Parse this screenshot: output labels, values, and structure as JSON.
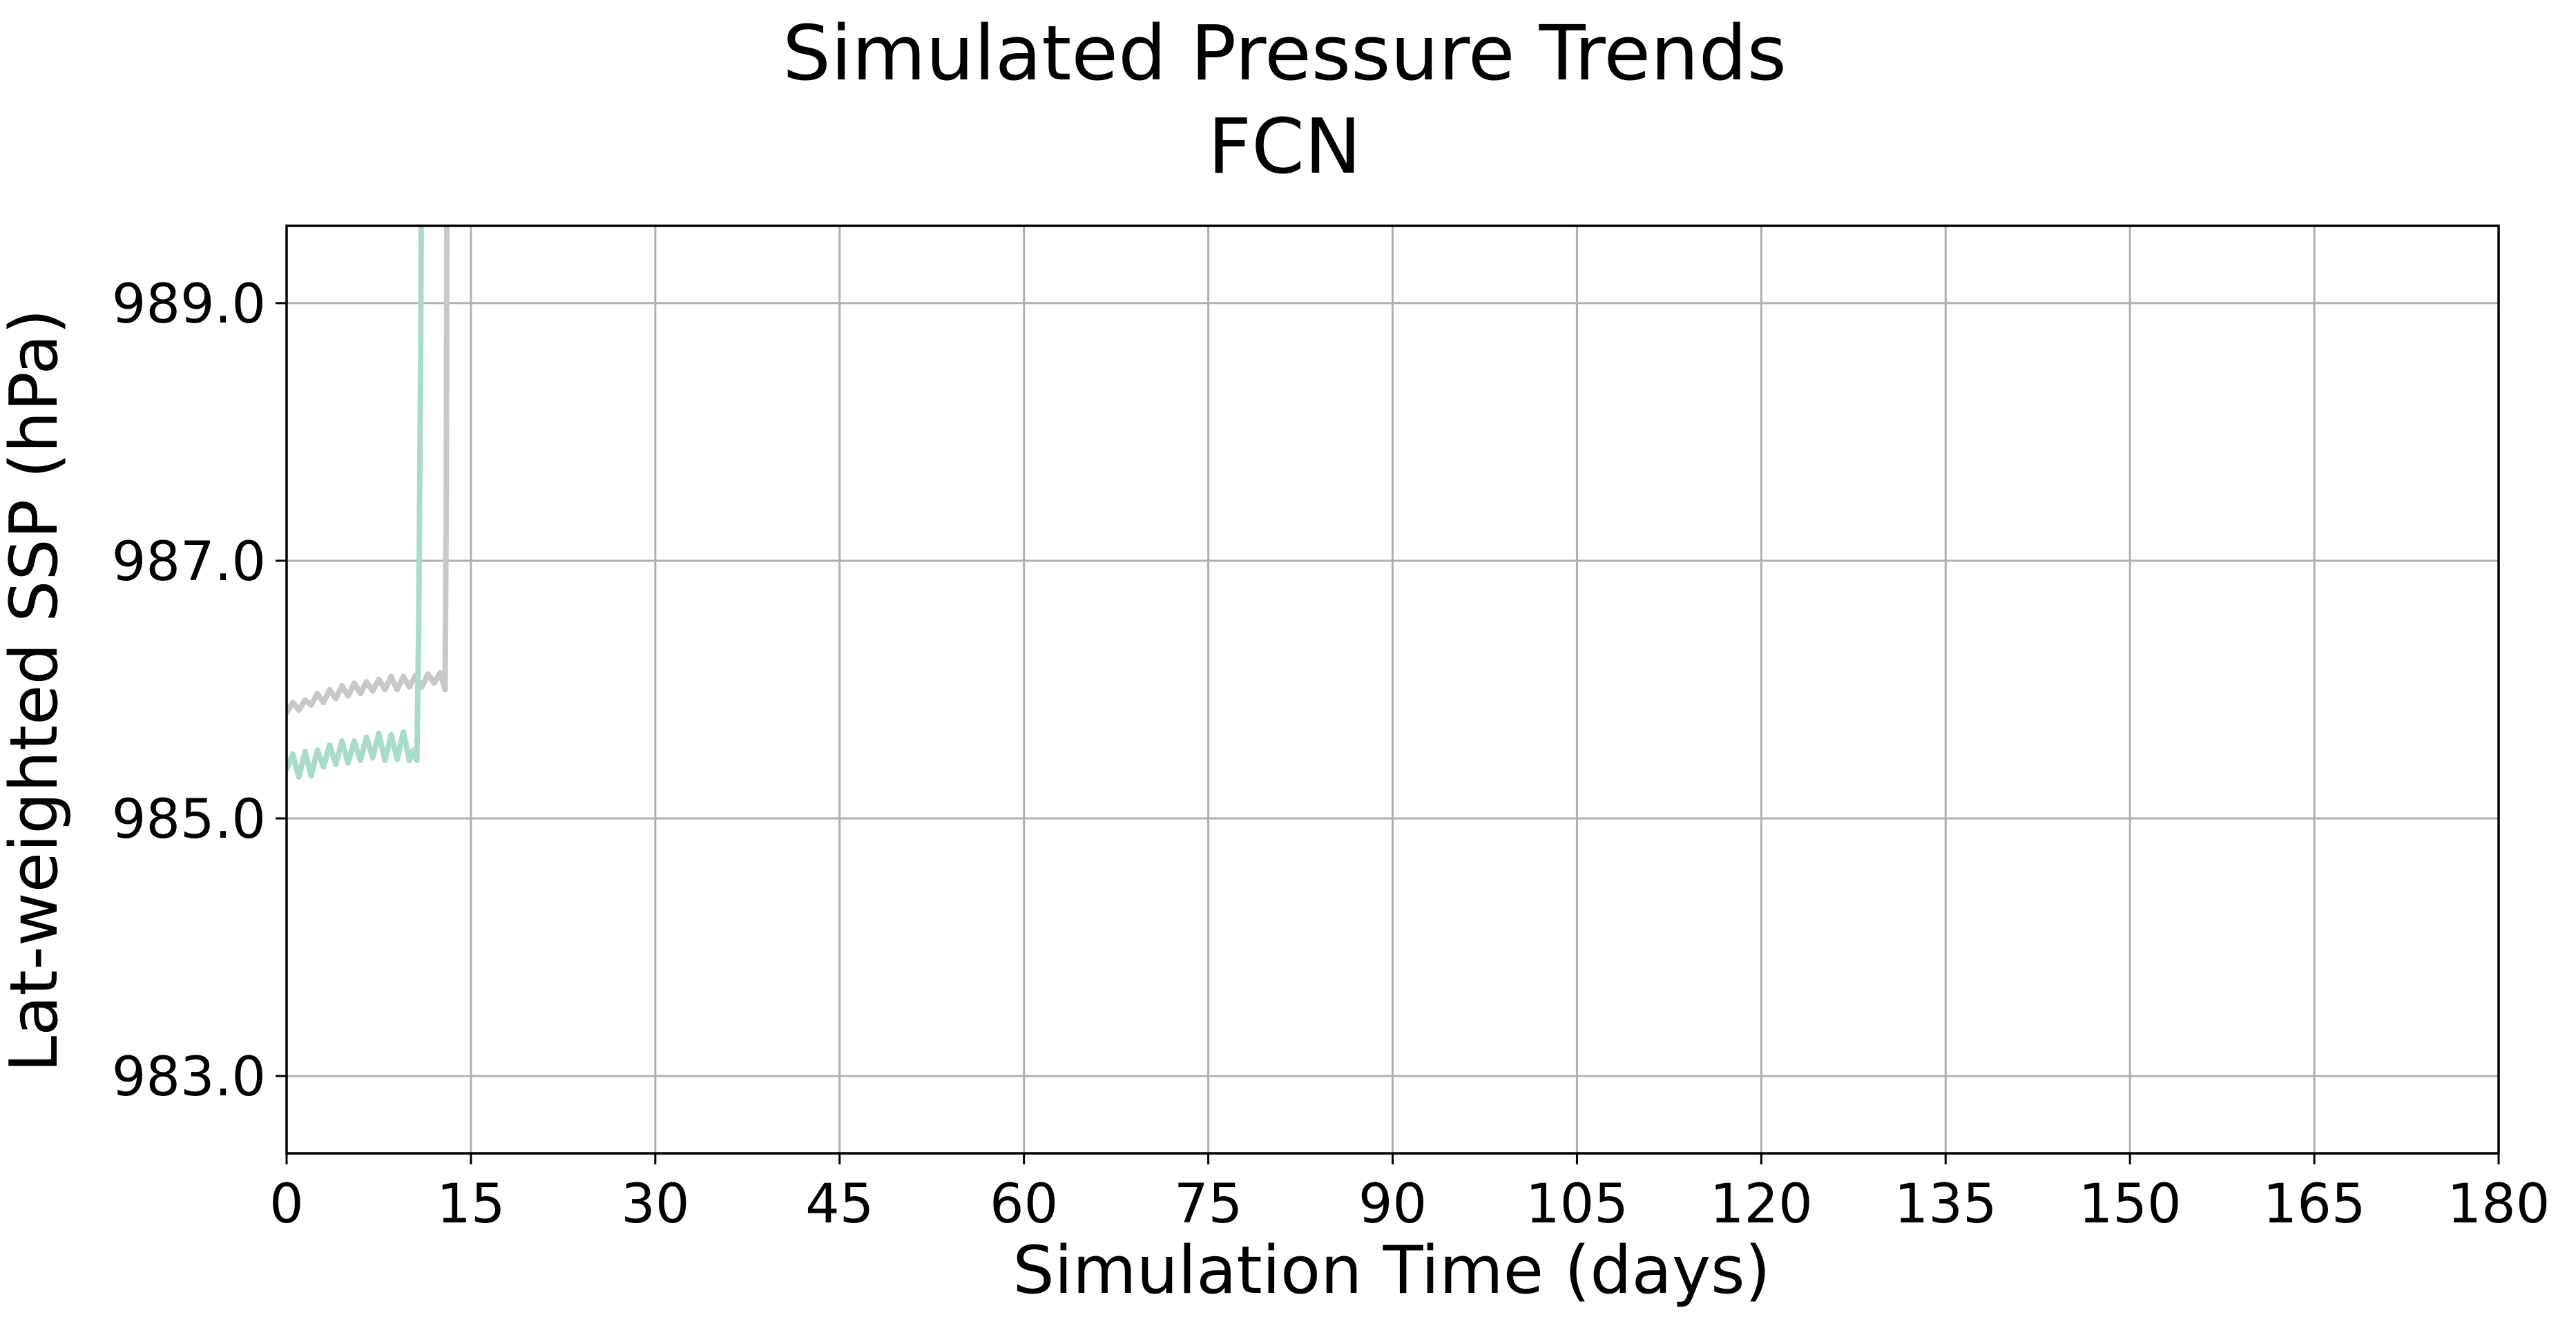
{
  "chart_data": {
    "type": "line",
    "title": "Simulated Pressure Trends",
    "subtitle": "FCN",
    "xlabel": "Simulation Time (days)",
    "ylabel": "Lat-weighted SSP (hPa)",
    "xlim": [
      0,
      180
    ],
    "ylim": [
      982.4,
      989.6
    ],
    "xticks": [
      0,
      15,
      30,
      45,
      60,
      75,
      90,
      105,
      120,
      135,
      150,
      165,
      180
    ],
    "xtick_labels": [
      "0",
      "15",
      "30",
      "45",
      "60",
      "75",
      "90",
      "105",
      "120",
      "135",
      "150",
      "165",
      "180"
    ],
    "yticks": [
      983.0,
      985.0,
      987.0,
      989.0
    ],
    "ytick_labels": [
      "983.0",
      "985.0",
      "987.0",
      "989.0"
    ],
    "grid": true,
    "series": [
      {
        "color": "#c8c8c8",
        "x": [
          0,
          0.5,
          1,
          1.5,
          2,
          2.5,
          3,
          3.5,
          4,
          4.5,
          5,
          5.5,
          6,
          6.5,
          7,
          7.5,
          8,
          8.5,
          9,
          9.5,
          10,
          10.5,
          11,
          11.5,
          12,
          12.5,
          12.9,
          13.0,
          13.05
        ],
        "y": [
          985.82,
          985.9,
          985.84,
          985.92,
          985.88,
          985.97,
          985.9,
          986.0,
          985.93,
          986.03,
          985.95,
          986.05,
          985.97,
          986.06,
          985.99,
          986.08,
          986.0,
          986.1,
          986.0,
          986.1,
          986.02,
          986.11,
          986.02,
          986.12,
          986.05,
          986.13,
          986.0,
          987.6,
          990.5
        ]
      },
      {
        "color": "#a8dcc8",
        "x": [
          0,
          0.5,
          1,
          1.5,
          2,
          2.5,
          3,
          3.5,
          4,
          4.5,
          5,
          5.5,
          6,
          6.5,
          7,
          7.5,
          8,
          8.5,
          9,
          9.5,
          10,
          10.3,
          10.6,
          10.75,
          10.9,
          11.0
        ],
        "y": [
          985.38,
          985.5,
          985.32,
          985.52,
          985.33,
          985.53,
          985.4,
          985.57,
          985.42,
          985.6,
          985.43,
          985.6,
          985.45,
          985.63,
          985.47,
          985.66,
          985.45,
          985.65,
          985.46,
          985.67,
          985.45,
          985.53,
          985.45,
          986.5,
          988.5,
          990.5
        ]
      }
    ]
  }
}
